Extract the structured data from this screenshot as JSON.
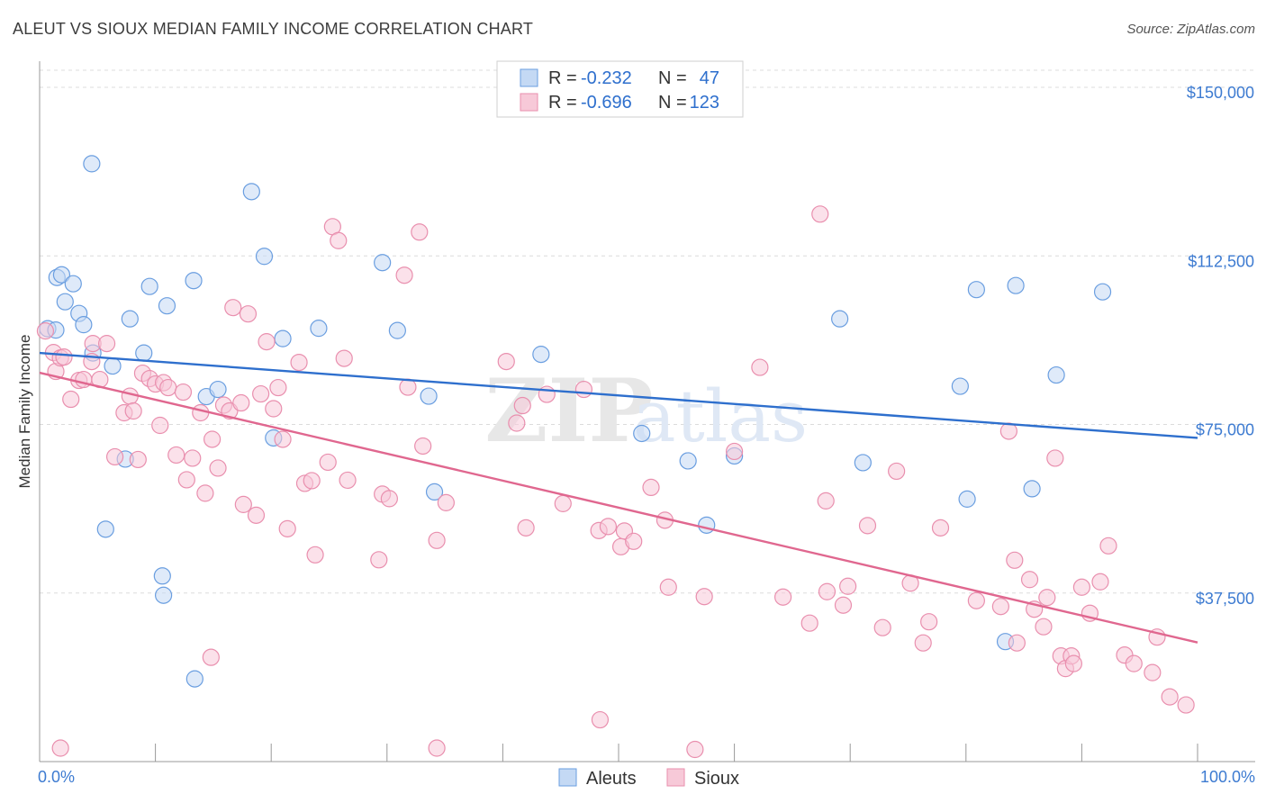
{
  "title": "ALEUT VS SIOUX MEDIAN FAMILY INCOME CORRELATION CHART",
  "source": "Source: ZipAtlas.com",
  "watermark": {
    "zip": "ZIP",
    "atlas": "atlas"
  },
  "colors": {
    "blue": "#6a9ee0",
    "blue_fill": "#c4d9f4",
    "blue_line": "#2e6fcd",
    "pink": "#e98fae",
    "pink_fill": "#f7c9d8",
    "pink_line": "#e0678f",
    "tick_text": "#3d7bd1",
    "grid": "#dcdcdc"
  },
  "legend_top": {
    "rows": [
      {
        "r_label": "R = ",
        "r_value": "-0.232",
        "n_label": "N = ",
        "n_value": "47",
        "series": "Aleuts"
      },
      {
        "r_label": "R = ",
        "r_value": "-0.696",
        "n_label": "N = ",
        "n_value": "123",
        "series": "Sioux"
      }
    ]
  },
  "chart_data": {
    "type": "scatter",
    "title": "ALEUT VS SIOUX MEDIAN FAMILY INCOME CORRELATION CHART",
    "xlabel": "",
    "ylabel": "Median Family Income",
    "xlim": [
      0,
      100
    ],
    "ylim": [
      0,
      155000
    ],
    "x_tick_labels": [
      "0.0%",
      "100.0%"
    ],
    "y_ticks": [
      37500,
      75000,
      112500,
      150000
    ],
    "y_tick_labels": [
      "$37,500",
      "$75,000",
      "$112,500",
      "$150,000"
    ],
    "legend": [
      "Aleuts",
      "Sioux"
    ],
    "series": [
      {
        "name": "Aleuts",
        "r": -0.232,
        "n": 47,
        "trend": {
          "x": [
            0,
            100
          ],
          "y": [
            90900,
            72000
          ]
        },
        "points": [
          [
            0.7,
            96300
          ],
          [
            1.4,
            96000
          ],
          [
            1.5,
            107700
          ],
          [
            1.9,
            108300
          ],
          [
            2.2,
            102300
          ],
          [
            2.9,
            106300
          ],
          [
            3.4,
            99700
          ],
          [
            3.8,
            97200
          ],
          [
            4.5,
            133000
          ],
          [
            4.6,
            90900
          ],
          [
            5.7,
            51700
          ],
          [
            6.3,
            88000
          ],
          [
            7.4,
            67300
          ],
          [
            7.8,
            98500
          ],
          [
            9.0,
            90900
          ],
          [
            9.5,
            105700
          ],
          [
            10.6,
            41300
          ],
          [
            10.7,
            37000
          ],
          [
            11.0,
            101400
          ],
          [
            13.3,
            107000
          ],
          [
            13.4,
            18400
          ],
          [
            14.4,
            81200
          ],
          [
            15.4,
            82800
          ],
          [
            18.3,
            126800
          ],
          [
            19.4,
            112400
          ],
          [
            20.2,
            72000
          ],
          [
            21.0,
            94100
          ],
          [
            24.1,
            96400
          ],
          [
            29.6,
            111000
          ],
          [
            30.9,
            95900
          ],
          [
            33.6,
            81300
          ],
          [
            34.1,
            60000
          ],
          [
            43.3,
            90600
          ],
          [
            52.0,
            73000
          ],
          [
            56.0,
            66900
          ],
          [
            57.6,
            52600
          ],
          [
            60.0,
            68000
          ],
          [
            69.1,
            98500
          ],
          [
            71.1,
            66500
          ],
          [
            79.5,
            83500
          ],
          [
            80.1,
            58400
          ],
          [
            80.9,
            105000
          ],
          [
            83.4,
            26700
          ],
          [
            84.3,
            105900
          ],
          [
            85.7,
            60700
          ],
          [
            87.8,
            86000
          ],
          [
            91.8,
            104500
          ]
        ]
      },
      {
        "name": "Sioux",
        "r": -0.696,
        "n": 123,
        "trend": {
          "x": [
            0,
            100
          ],
          "y": [
            86500,
            26500
          ]
        },
        "points": [
          [
            0.5,
            95800
          ],
          [
            1.2,
            91000
          ],
          [
            1.4,
            86800
          ],
          [
            1.8,
            89800
          ],
          [
            2.1,
            90000
          ],
          [
            2.7,
            80600
          ],
          [
            3.4,
            84800
          ],
          [
            3.8,
            85000
          ],
          [
            4.5,
            89000
          ],
          [
            4.6,
            93000
          ],
          [
            5.2,
            85000
          ],
          [
            5.8,
            93000
          ],
          [
            6.5,
            67800
          ],
          [
            7.3,
            77600
          ],
          [
            7.8,
            81300
          ],
          [
            8.1,
            78000
          ],
          [
            8.5,
            67200
          ],
          [
            8.9,
            86400
          ],
          [
            9.5,
            85200
          ],
          [
            10.0,
            84000
          ],
          [
            10.4,
            74800
          ],
          [
            10.7,
            84300
          ],
          [
            11.1,
            83200
          ],
          [
            11.8,
            68200
          ],
          [
            12.4,
            82200
          ],
          [
            12.7,
            62700
          ],
          [
            13.2,
            67500
          ],
          [
            13.9,
            77600
          ],
          [
            14.3,
            59700
          ],
          [
            14.9,
            71700
          ],
          [
            15.4,
            65300
          ],
          [
            15.9,
            79300
          ],
          [
            16.4,
            78000
          ],
          [
            16.7,
            101000
          ],
          [
            17.4,
            79800
          ],
          [
            17.6,
            57200
          ],
          [
            18.0,
            99600
          ],
          [
            18.7,
            54800
          ],
          [
            19.1,
            81800
          ],
          [
            19.6,
            93400
          ],
          [
            20.2,
            78500
          ],
          [
            20.6,
            83200
          ],
          [
            21.0,
            71700
          ],
          [
            21.4,
            51800
          ],
          [
            22.4,
            88800
          ],
          [
            22.9,
            61900
          ],
          [
            23.5,
            62500
          ],
          [
            23.8,
            46000
          ],
          [
            24.9,
            66600
          ],
          [
            25.3,
            119000
          ],
          [
            25.8,
            115900
          ],
          [
            26.3,
            89700
          ],
          [
            26.6,
            62600
          ],
          [
            29.3,
            44900
          ],
          [
            29.6,
            59500
          ],
          [
            30.2,
            58500
          ],
          [
            31.5,
            108200
          ],
          [
            31.8,
            83300
          ],
          [
            32.8,
            117800
          ],
          [
            33.1,
            70200
          ],
          [
            34.3,
            49200
          ],
          [
            35.1,
            57600
          ],
          [
            40.3,
            89000
          ],
          [
            41.2,
            75300
          ],
          [
            41.7,
            79200
          ],
          [
            42.0,
            52000
          ],
          [
            43.8,
            81700
          ],
          [
            45.2,
            57400
          ],
          [
            47.0,
            82800
          ],
          [
            48.3,
            51400
          ],
          [
            49.1,
            52300
          ],
          [
            50.2,
            47800
          ],
          [
            50.5,
            51300
          ],
          [
            51.3,
            49000
          ],
          [
            52.8,
            61000
          ],
          [
            54.0,
            53700
          ],
          [
            54.3,
            38800
          ],
          [
            57.4,
            36700
          ],
          [
            60.0,
            69000
          ],
          [
            62.2,
            87700
          ],
          [
            64.2,
            36600
          ],
          [
            66.5,
            30800
          ],
          [
            67.4,
            121800
          ],
          [
            67.9,
            58000
          ],
          [
            68.0,
            37800
          ],
          [
            69.4,
            34800
          ],
          [
            69.8,
            39000
          ],
          [
            71.5,
            52500
          ],
          [
            72.8,
            29800
          ],
          [
            74.0,
            64600
          ],
          [
            75.2,
            39700
          ],
          [
            76.3,
            26400
          ],
          [
            76.8,
            31100
          ],
          [
            77.8,
            52000
          ],
          [
            80.9,
            35800
          ],
          [
            83.0,
            34500
          ],
          [
            83.7,
            73500
          ],
          [
            84.2,
            44800
          ],
          [
            84.4,
            26400
          ],
          [
            85.5,
            40500
          ],
          [
            85.9,
            33900
          ],
          [
            86.7,
            30000
          ],
          [
            87.0,
            36500
          ],
          [
            87.7,
            67500
          ],
          [
            88.2,
            23500
          ],
          [
            88.6,
            20700
          ],
          [
            89.1,
            23500
          ],
          [
            89.3,
            21800
          ],
          [
            90.0,
            38800
          ],
          [
            90.7,
            33000
          ],
          [
            91.6,
            40000
          ],
          [
            92.3,
            48000
          ],
          [
            93.7,
            23700
          ],
          [
            94.5,
            21800
          ],
          [
            96.1,
            19800
          ],
          [
            96.5,
            27700
          ],
          [
            97.6,
            14400
          ],
          [
            99.0,
            12600
          ],
          [
            1.8,
            3000
          ],
          [
            14.8,
            23200
          ],
          [
            34.3,
            3000
          ],
          [
            48.4,
            9300
          ],
          [
            56.6,
            2700
          ]
        ]
      }
    ]
  }
}
